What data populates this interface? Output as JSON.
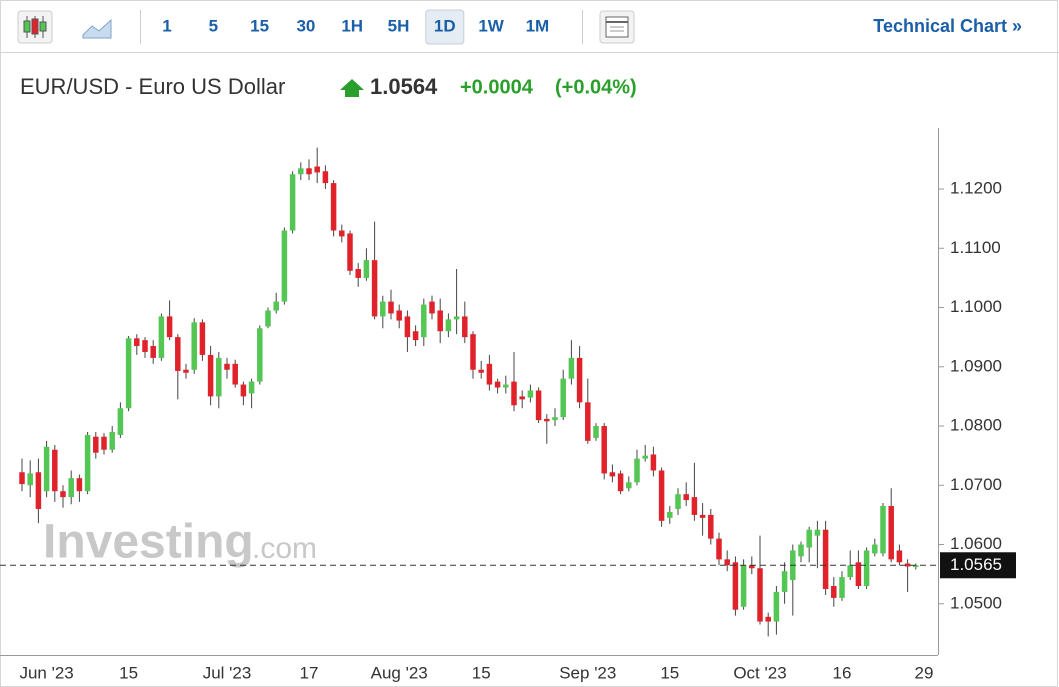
{
  "toolbar": {
    "intervals": [
      "1",
      "5",
      "15",
      "30",
      "1H",
      "5H",
      "1D",
      "1W",
      "1M"
    ],
    "link": "Technical Chart »"
  },
  "header": {
    "title": "EUR/USD - Euro US Dollar",
    "price": "1.0564",
    "change": "+0.0004",
    "change_percent": "(+0.04%)"
  },
  "watermark": {
    "brand": "Investing",
    "suffix": ".com"
  },
  "chart_data": {
    "type": "candlestick",
    "up_color": "#53c653",
    "down_color": "#e0222b",
    "categories": [
      null,
      null,
      null,
      "Jun '23",
      null,
      null,
      null,
      null,
      null,
      null,
      null,
      null,
      null,
      "15",
      null,
      null,
      null,
      null,
      null,
      null,
      null,
      null,
      null,
      null,
      null,
      "Jul '23",
      null,
      null,
      null,
      null,
      null,
      null,
      null,
      null,
      null,
      "17",
      null,
      null,
      null,
      null,
      null,
      null,
      null,
      null,
      null,
      null,
      "Aug '23",
      null,
      null,
      null,
      null,
      null,
      null,
      null,
      null,
      null,
      "15",
      null,
      null,
      null,
      null,
      null,
      null,
      null,
      null,
      null,
      null,
      null,
      null,
      "Sep '23",
      null,
      null,
      null,
      null,
      null,
      null,
      null,
      null,
      null,
      "15",
      null,
      null,
      null,
      null,
      null,
      null,
      null,
      null,
      null,
      null,
      "Oct '23",
      null,
      null,
      null,
      null,
      null,
      null,
      null,
      null,
      null,
      "16",
      null,
      null,
      null,
      null,
      null,
      null,
      null,
      null,
      null,
      "29"
    ],
    "open": [
      1.0722,
      1.07,
      1.0722,
      1.069,
      1.076,
      1.069,
      1.068,
      1.0712,
      1.069,
      1.0782,
      1.0782,
      1.076,
      1.0785,
      1.083,
      1.0948,
      1.0945,
      1.0935,
      1.0915,
      1.0985,
      1.095,
      1.0895,
      1.0895,
      1.0975,
      1.092,
      1.085,
      1.0905,
      1.0905,
      1.087,
      1.0855,
      1.0875,
      1.0968,
      1.0995,
      1.101,
      1.113,
      1.1225,
      1.1235,
      1.1238,
      1.123,
      1.121,
      1.113,
      1.1125,
      1.1065,
      1.105,
      1.108,
      1.0985,
      1.101,
      1.0995,
      1.0985,
      1.096,
      1.095,
      1.101,
      1.0995,
      1.096,
      1.098,
      1.0985,
      1.0955,
      1.0895,
      1.0905,
      1.0875,
      1.0865,
      1.0875,
      1.085,
      1.0848,
      1.086,
      1.0812,
      1.081,
      1.0815,
      1.088,
      1.0915,
      1.084,
      1.078,
      1.08,
      1.0722,
      1.072,
      1.0695,
      1.0705,
      1.0745,
      1.0752,
      1.0725,
      1.0645,
      1.066,
      1.0685,
      1.068,
      1.065,
      1.065,
      1.061,
      1.0575,
      1.057,
      1.0495,
      1.0565,
      1.056,
      1.0478,
      1.047,
      1.052,
      1.054,
      1.058,
      1.0595,
      1.0615,
      1.0625,
      1.053,
      1.051,
      1.0545,
      1.057,
      1.053,
      1.0585,
      1.0585,
      1.0665,
      1.059,
      1.0568,
      1.0562,
      null
    ],
    "high": [
      1.0745,
      1.0742,
      1.0745,
      1.0775,
      1.0768,
      1.07,
      1.0725,
      1.0718,
      1.079,
      1.079,
      1.0788,
      1.08,
      1.084,
      1.0952,
      1.0955,
      1.095,
      1.0945,
      1.099,
      1.1012,
      1.0955,
      1.0905,
      1.0982,
      1.098,
      1.0935,
      1.0925,
      1.0915,
      1.0912,
      1.0875,
      1.088,
      1.097,
      1.1,
      1.1025,
      1.1135,
      1.123,
      1.1245,
      1.125,
      1.127,
      1.124,
      1.1215,
      1.114,
      1.113,
      1.1075,
      1.11,
      1.1145,
      1.102,
      1.103,
      1.1005,
      1.0995,
      1.097,
      1.1015,
      1.102,
      1.1015,
      1.099,
      1.1065,
      1.101,
      1.096,
      1.091,
      1.092,
      1.088,
      1.0885,
      1.0925,
      1.086,
      1.087,
      1.0865,
      1.082,
      1.083,
      1.0895,
      1.0945,
      1.0935,
      1.088,
      1.0805,
      1.0805,
      1.0735,
      1.0725,
      1.0715,
      1.076,
      1.0768,
      1.0765,
      1.073,
      1.0665,
      1.0695,
      1.0705,
      1.0738,
      1.067,
      1.066,
      1.062,
      1.059,
      1.058,
      1.0575,
      1.058,
      1.0615,
      1.0485,
      1.053,
      1.057,
      1.06,
      1.0605,
      1.063,
      1.064,
      1.064,
      1.0545,
      1.0555,
      1.059,
      1.059,
      1.0595,
      1.061,
      1.067,
      1.0695,
      1.06,
      1.0575,
      1.0568,
      null
    ],
    "low": [
      1.069,
      1.068,
      1.0636,
      1.068,
      1.0672,
      1.0662,
      1.0668,
      1.0672,
      1.0685,
      1.0745,
      1.0752,
      1.0755,
      1.078,
      1.0825,
      1.092,
      1.0915,
      1.0905,
      1.091,
      1.0945,
      1.0845,
      1.088,
      1.0888,
      1.091,
      1.0835,
      1.083,
      1.088,
      1.0865,
      1.0835,
      1.083,
      1.087,
      1.0965,
      1.099,
      1.1005,
      1.1125,
      1.1215,
      1.1215,
      1.121,
      1.12,
      1.112,
      1.111,
      1.1055,
      1.1035,
      1.1045,
      1.098,
      1.0965,
      1.098,
      1.0965,
      1.0925,
      1.0935,
      1.0935,
      1.098,
      1.094,
      1.095,
      1.0955,
      1.094,
      1.088,
      1.088,
      1.086,
      1.0855,
      1.0855,
      1.0825,
      1.083,
      1.084,
      1.0805,
      1.077,
      1.08,
      1.081,
      1.087,
      1.083,
      1.077,
      1.0775,
      1.071,
      1.0705,
      1.0685,
      1.069,
      1.07,
      1.074,
      1.0715,
      1.063,
      1.0635,
      1.065,
      1.0665,
      1.064,
      1.0615,
      1.06,
      1.0565,
      1.0555,
      1.048,
      1.049,
      1.055,
      1.0465,
      1.0445,
      1.0448,
      1.05,
      1.048,
      1.057,
      1.057,
      1.056,
      1.0515,
      1.0495,
      1.0505,
      1.054,
      1.0525,
      1.0525,
      1.058,
      1.058,
      1.057,
      1.0565,
      1.052,
      1.0558,
      null
    ],
    "close": [
      1.0702,
      1.072,
      1.066,
      1.0765,
      1.069,
      1.068,
      1.0712,
      1.069,
      1.0785,
      1.0755,
      1.076,
      1.079,
      1.083,
      1.0948,
      1.0935,
      1.0925,
      1.0915,
      1.0985,
      1.095,
      1.0893,
      1.089,
      1.0975,
      1.092,
      1.085,
      1.0915,
      1.0895,
      1.087,
      1.085,
      1.0875,
      1.0965,
      1.0995,
      1.101,
      1.113,
      1.1225,
      1.1235,
      1.1225,
      1.1228,
      1.121,
      1.113,
      1.112,
      1.1062,
      1.105,
      1.108,
      1.0985,
      1.101,
      1.099,
      1.0978,
      1.095,
      1.0945,
      1.1005,
      1.099,
      1.096,
      1.098,
      1.0985,
      1.095,
      1.0895,
      1.089,
      1.087,
      1.0865,
      1.087,
      1.0835,
      1.0845,
      1.086,
      1.081,
      1.0808,
      1.0815,
      1.088,
      1.0915,
      1.084,
      1.0775,
      1.08,
      1.072,
      1.0715,
      1.069,
      1.0705,
      1.0745,
      1.075,
      1.0725,
      1.064,
      1.0655,
      1.0685,
      1.0675,
      1.065,
      1.0645,
      1.061,
      1.0575,
      1.0565,
      1.049,
      1.0565,
      1.056,
      1.047,
      1.047,
      1.052,
      1.0555,
      1.059,
      1.06,
      1.0625,
      1.0625,
      1.0525,
      1.051,
      1.0545,
      1.0565,
      1.053,
      1.059,
      1.06,
      1.0665,
      1.0575,
      1.057,
      1.0563,
      1.0565,
      null
    ],
    "ylim": [
      1.0422,
      1.1303
    ],
    "yticks": [
      {
        "value": 1.05,
        "label": "1.0500"
      },
      {
        "value": 1.06,
        "label": "1.0600"
      },
      {
        "value": 1.07,
        "label": "1.0700"
      },
      {
        "value": 1.08,
        "label": "1.0800"
      },
      {
        "value": 1.09,
        "label": "1.0900"
      },
      {
        "value": 1.1,
        "label": "1.1000"
      },
      {
        "value": 1.11,
        "label": "1.1100"
      },
      {
        "value": 1.12,
        "label": "1.1200"
      }
    ],
    "last_price": {
      "value": 1.0565,
      "label": "1.0565"
    }
  }
}
